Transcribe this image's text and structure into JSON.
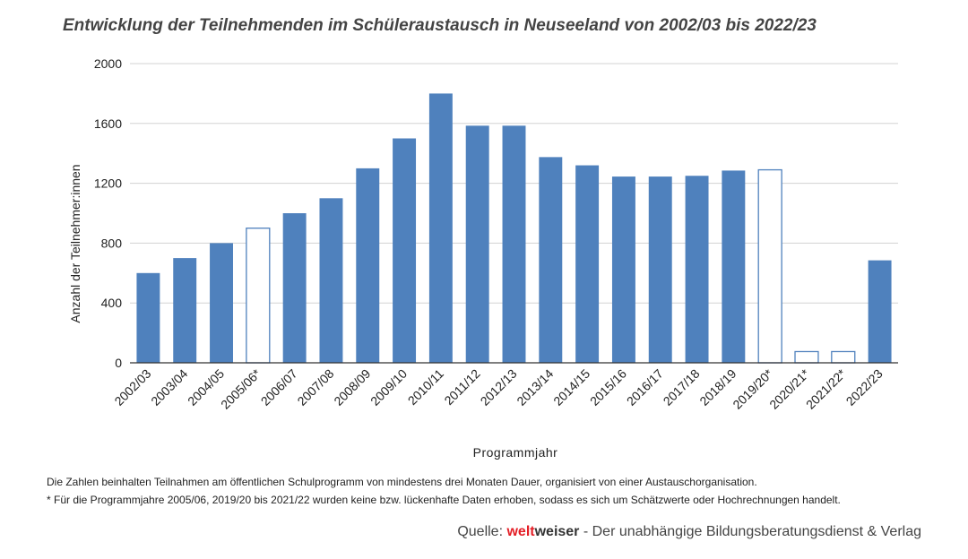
{
  "chart_data": {
    "type": "bar",
    "title": "Entwicklung der Teilnehmenden im Schüleraustausch in Neuseeland von 2002/03 bis 2022/23",
    "xlabel": "Programmjahr",
    "ylabel": "Anzahl der Teilnehmer:innen",
    "ylim": [
      0,
      2000
    ],
    "yticks": [
      0,
      400,
      800,
      1200,
      1600,
      2000
    ],
    "grid": true,
    "categories": [
      "2002/03",
      "2003/04",
      "2004/05",
      "2005/06*",
      "2006/07",
      "2007/08",
      "2008/09",
      "2009/10",
      "2010/11",
      "2011/12",
      "2012/13",
      "2013/14",
      "2014/15",
      "2015/16",
      "2016/17",
      "2017/18",
      "2018/19",
      "2019/20*",
      "2020/21*",
      "2021/22*",
      "2022/23"
    ],
    "values": [
      600,
      700,
      800,
      900,
      1000,
      1100,
      1300,
      1500,
      1800,
      1585,
      1585,
      1375,
      1320,
      1245,
      1245,
      1250,
      1285,
      1290,
      75,
      75,
      685
    ],
    "estimated": [
      false,
      false,
      false,
      true,
      false,
      false,
      false,
      false,
      false,
      false,
      false,
      false,
      false,
      false,
      false,
      false,
      false,
      true,
      true,
      true,
      false
    ],
    "colors": {
      "bar": "#4f81bd",
      "estimated_fill": "#ffffff",
      "estimated_stroke": "#4f81bd",
      "grid": "#d3d3d3",
      "axis": "#333333"
    }
  },
  "notes": {
    "line1": "Die Zahlen beinhalten Teilnahmen am öffentlichen Schulprogramm von mindestens drei Monaten Dauer, organisiert von einer Austauschorganisation.",
    "line2": "* Für die Programmjahre 2005/06, 2019/20 bis 2021/22 wurden keine bzw. lückenhafte Daten erhoben, sodass es sich um Schätzwerte oder Hochrechnungen handelt."
  },
  "source": {
    "prefix": "Quelle: ",
    "brand_part1": "welt",
    "brand_part2": "weiser",
    "suffix": " - Der unabhängige Bildungsberatungsdienst & Verlag",
    "brand_color": "#e41e26"
  }
}
